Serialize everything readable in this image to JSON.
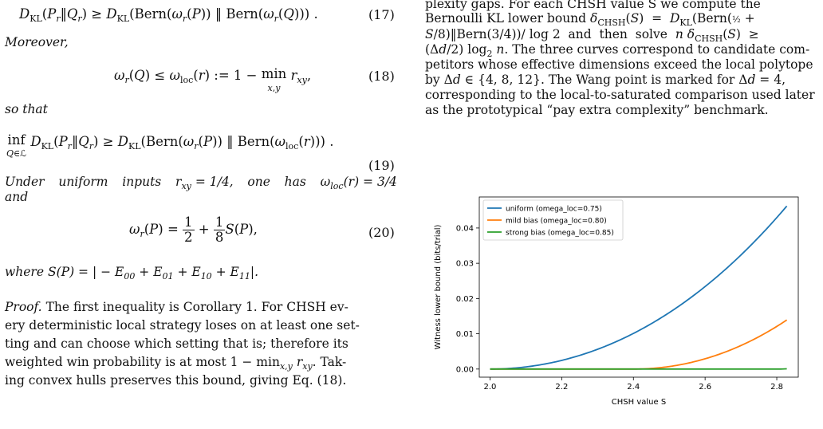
{
  "left": {
    "eq17": "D_KL(P_r‖Q_r) ≥ D_KL(Bern(ω_r(P)) ‖ Bern(ω_r(Q))) .",
    "eq17_no": "(17)",
    "moreover": "Moreover,",
    "eq18": "ω_r(Q) ≤ ω_loc(r) := 1 − min_{x,y} r_xy,",
    "eq18_no": "(18)",
    "so_that": "so that",
    "eq19": "inf_{Q∈ℒ} D_KL(P_r‖Q_r) ≥ D_KL(Bern(ω_r(P)) ‖ Bern(ω_loc(r))) .",
    "eq19_no": "(19)",
    "uniform_line1": "Under uniform inputs r_xy = 1/4, one has ω_loc(r) = 3/4",
    "uniform_line2": "and",
    "eq20": "ω_r(P) = 1/2 + 1/8 S(P),",
    "eq20_no": "(20)",
    "where": "where S(P) = | − E_00 + E_01 + E_10 + E_11|.",
    "proof_label": "Proof.",
    "proof_lines": [
      "The first inequality is Corollary 1. For CHSH ev-",
      "ery deterministic local strategy loses on at least one set-",
      "ting and can choose which setting that is; therefore its",
      "weighted win probability is at most 1 − min_{x,y} r_xy. Tak-",
      "ing convex hulls preserves this bound, giving Eq. (18)."
    ]
  },
  "right": {
    "lines": [
      "plexity gaps.   For each CHSH value S we compute the",
      "Bernoulli KL lower bound δ_CHSH(S) = D_KL(Bern(1/2 +",
      "S/8)‖Bern(3/4))/ log 2 and then solve n δ_CHSH(S) ≥",
      "(Δd/2) log_2 n. The three curves correspond to candidate com-",
      "petitors whose effective dimensions exceed the local polytope",
      "by Δd ∈ {4, 8, 12}. The Wang point is marked for Δd = 4,",
      "corresponding to the local-to-saturated comparison used later",
      "as the prototypical “pay extra complexity” benchmark."
    ]
  },
  "chart_data": {
    "type": "line",
    "title": "",
    "xlabel": "CHSH value S",
    "ylabel": "Witness lower bound (bits/trial)",
    "xlim": [
      1.97,
      2.86
    ],
    "ylim": [
      -0.0023,
      0.0488
    ],
    "xticks": [
      2.0,
      2.2,
      2.4,
      2.6,
      2.8
    ],
    "xtick_labels": [
      "2.0",
      "2.2",
      "2.4",
      "2.6",
      "2.8"
    ],
    "yticks": [
      0.0,
      0.01,
      0.02,
      0.03,
      0.04
    ],
    "ytick_labels": [
      "0.00",
      "0.01",
      "0.02",
      "0.03",
      "0.04"
    ],
    "grid": false,
    "legend_position": "top-left",
    "series": [
      {
        "name": "uniform (omega_loc=0.75)",
        "color": "#1f77b4",
        "omega_loc": 0.75
      },
      {
        "name": "mild bias (omega_loc=0.80)",
        "color": "#ff7f0e",
        "omega_loc": 0.8
      },
      {
        "name": "strong bias (omega_loc=0.85)",
        "color": "#2ca02c",
        "omega_loc": 0.85
      }
    ],
    "x_range": [
      2.0,
      2.828
    ]
  }
}
